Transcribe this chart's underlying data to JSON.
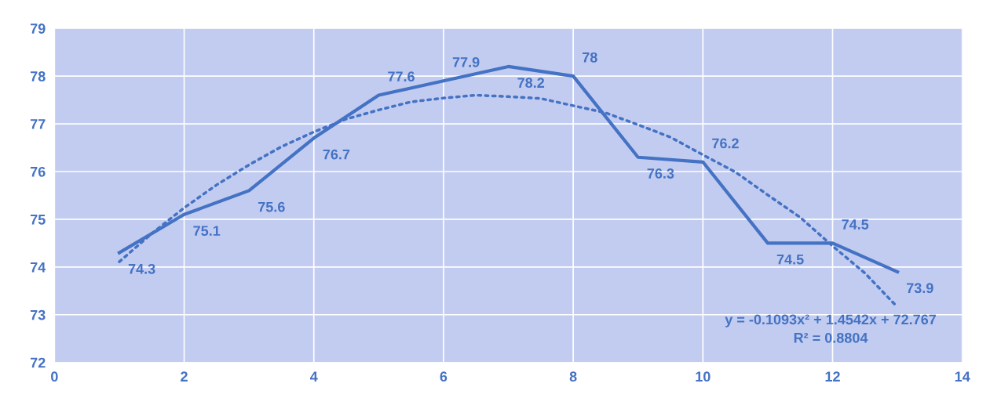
{
  "chart_data": {
    "type": "line",
    "x": [
      1,
      2,
      3,
      4,
      5,
      6,
      7,
      8,
      9,
      10,
      11,
      12,
      13
    ],
    "series": [
      {
        "color": "#4472c4",
        "values": [
          74.3,
          75.1,
          75.6,
          76.7,
          77.6,
          77.9,
          78.2,
          78,
          76.3,
          76.2,
          74.5,
          74.5,
          73.9
        ],
        "value_labels": [
          "74.3",
          "75.1",
          "75.6",
          "76.7",
          "77.6",
          "77.9",
          "78.2",
          "78",
          "76.3",
          "76.2",
          "74.5",
          "74.5",
          "73.9"
        ],
        "line_style": "solid"
      },
      {
        "type": "line",
        "color": "#4472c4",
        "line_style": "dotted",
        "x": [
          1,
          1.5,
          2,
          2.5,
          3,
          3.5,
          4,
          4.5,
          5,
          5.5,
          6,
          6.5,
          7,
          7.5,
          8,
          8.5,
          9,
          9.5,
          10,
          10.5,
          11,
          11.5,
          12,
          12.5,
          13
        ],
        "values": [
          74.11,
          74.7,
          75.24,
          75.72,
          76.14,
          76.52,
          76.83,
          77.1,
          77.29,
          77.46,
          77.54,
          77.6,
          77.57,
          77.53,
          77.38,
          77.23,
          76.98,
          76.72,
          76.35,
          75.99,
          75.51,
          75.04,
          74.44,
          73.87,
          73.16
        ]
      }
    ],
    "xlim": [
      0,
      14
    ],
    "xticks": [
      0,
      2,
      4,
      6,
      8,
      10,
      12,
      14
    ],
    "ylim": [
      72,
      79
    ],
    "yticks": [
      72,
      73,
      74,
      75,
      76,
      77,
      78,
      79
    ],
    "grid": true,
    "marker": "none",
    "annotations": [
      "y = -0.1093x² + 1.4542x + 72.767",
      "R² = 0.8804"
    ]
  }
}
